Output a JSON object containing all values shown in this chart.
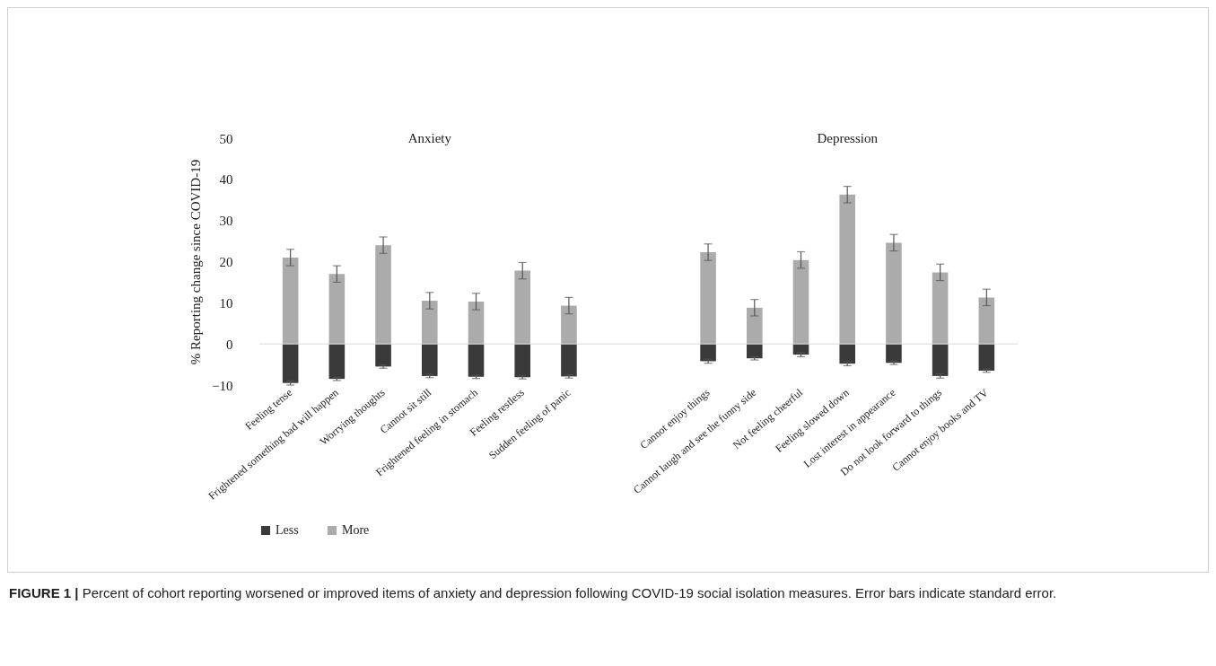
{
  "chart_data": {
    "type": "bar",
    "ylabel": "% Reporting change since COVID-19",
    "categories": [
      "Feeling tense",
      "Frightened something bad will happen",
      "Worrying thoughts",
      "Cannot sit still",
      "Frightened feeling in stomach",
      "Feeling restless",
      "Sudden feeling of panic",
      null,
      null,
      "Cannot enjoy things",
      "Cannot laugh and see the funny side",
      "Not feeling cheerful",
      "Feeling slowed down",
      "Lost interest in appearance",
      "Do not look forward to things",
      "Cannot enjoy books and TV"
    ],
    "series": [
      {
        "name": "Less",
        "color": "#3a3a3a",
        "values": [
          -9.5,
          -8.5,
          -5.5,
          -7.8,
          -8,
          -8.1,
          -7.9,
          null,
          null,
          -4.2,
          -3.5,
          -2.6,
          -4.8,
          -4.6,
          -7.8,
          -6.5
        ],
        "errors": [
          0.5,
          0.4,
          0.4,
          0.4,
          0.4,
          0.4,
          0.4,
          null,
          null,
          0.5,
          0.4,
          0.5,
          0.5,
          0.4,
          0.5,
          0.4
        ]
      },
      {
        "name": "More",
        "color": "#ababab",
        "values": [
          21,
          17,
          24,
          10.5,
          10.3,
          17.8,
          9.3,
          null,
          null,
          22.3,
          8.8,
          20.4,
          36.3,
          24.6,
          17.4,
          11.3
        ],
        "errors": [
          2,
          2,
          2,
          2,
          2,
          2,
          2,
          null,
          null,
          2,
          2,
          2,
          2,
          2,
          2,
          2
        ]
      }
    ],
    "ylim": [
      -10,
      50
    ],
    "yticks": [
      -10,
      0,
      10,
      20,
      30,
      40,
      50
    ],
    "grid": false,
    "legend": "bottom",
    "ref_lines": [
      {
        "axis": "y",
        "value": 0,
        "color": "#d9d9d9"
      }
    ],
    "stacked": true,
    "annotations": [
      "Anxiety",
      "Depression",
      "FIGURE 1 | Percent of cohort reporting worsened or improved items of anxiety and depression following COVID-19 social isolation measures. Error bars indicate standard error."
    ]
  }
}
